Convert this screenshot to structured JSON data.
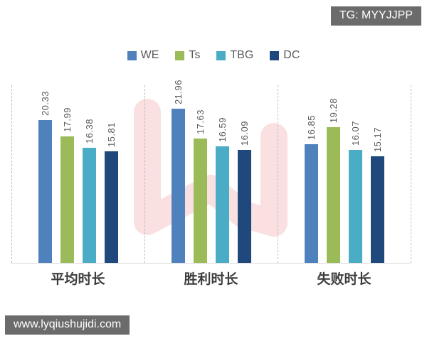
{
  "watermarks": {
    "top_right": "TG: MYYJJPP",
    "bottom_left": "www.lyqiushujidi.com"
  },
  "chart_data": {
    "type": "bar",
    "title": "",
    "xlabel": "",
    "ylabel": "",
    "categories": [
      "平均时长",
      "胜利时长",
      "失败时长"
    ],
    "series": [
      {
        "name": "WE",
        "color": "#4F81BD",
        "values": [
          20.33,
          21.96,
          16.85
        ]
      },
      {
        "name": "Ts",
        "color": "#9BBB59",
        "values": [
          17.99,
          17.63,
          19.28
        ]
      },
      {
        "name": "TBG",
        "color": "#4BACC6",
        "values": [
          16.38,
          16.59,
          16.07
        ]
      },
      {
        "name": "DC",
        "color": "#1F497D",
        "values": [
          15.81,
          16.09,
          15.17
        ]
      }
    ],
    "ylim": [
      0,
      25
    ],
    "legend_position": "top",
    "data_labels": true,
    "data_label_rotation": 90,
    "grid": "vertical-dashed-separators",
    "colors": {
      "data_label": "#595959",
      "category_label": "#3D3D3D",
      "axis_line": "#D9D9D9",
      "separator": "#BDBDBD",
      "watermark_pink": "#F5C6C6",
      "badge_background": "#6B6B6B",
      "badge_text": "#FFFFFF"
    }
  }
}
